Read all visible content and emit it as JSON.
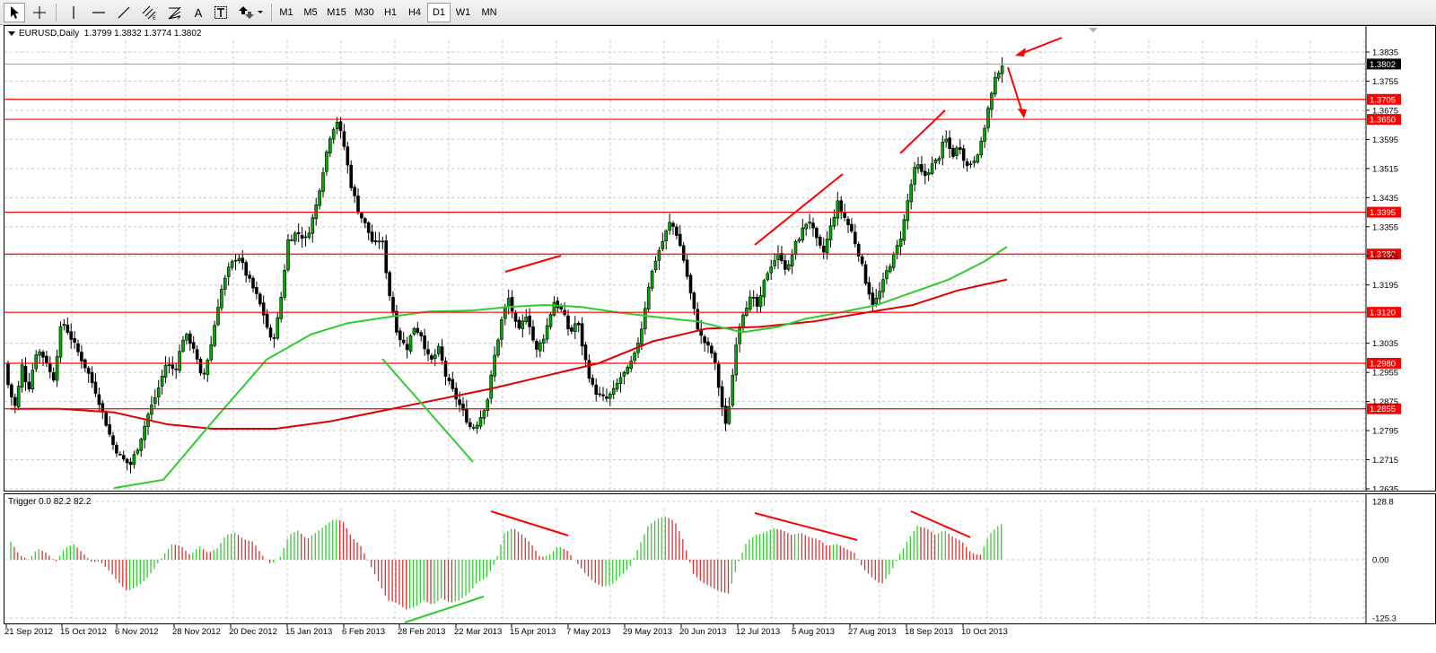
{
  "toolbar": {
    "timeframes": [
      "M1",
      "M5",
      "M15",
      "M30",
      "H1",
      "H4",
      "D1",
      "W1",
      "MN"
    ],
    "active_timeframe": "D1",
    "text_tool_label": "A",
    "icons": [
      "cursor-icon",
      "crosshair-icon",
      "vertical-line-icon",
      "horizontal-line-icon",
      "trendline-icon",
      "fibonacci-channel-icon",
      "fibonacci-fan-icon",
      "text-icon",
      "text-label-icon",
      "arrows-icon"
    ]
  },
  "main_chart": {
    "label": "EURUSD,Daily  1.3799 1.3832 1.3774 1.3802",
    "price_labels": [
      "1.3835",
      "1.3755",
      "1.3675",
      "1.3595",
      "1.3515",
      "1.3435",
      "1.3355",
      "1.3275",
      "1.3195",
      "1.3035",
      "1.2955",
      "1.2875",
      "1.2795",
      "1.2715",
      "1.2635"
    ],
    "current_price": "1.3802",
    "level_labels": [
      "1.3705",
      "1.3650",
      "1.3395",
      "1.3280",
      "1.3120",
      "1.2980",
      "1.2855"
    ],
    "colors": {
      "bull": "#00aa00",
      "bear": "#000000",
      "level": "#ff0000",
      "ma_fast": "#2fcc2f",
      "ma_slow": "#dd0000",
      "annotation": "#ff0000"
    }
  },
  "indicator": {
    "label": "Trigger 0.0 82.2 82.2",
    "scale_labels": [
      "128.8",
      "0.00",
      "-125.3"
    ],
    "colors": {
      "up": "#33cc33",
      "down": "#e03030"
    }
  },
  "date_labels": [
    "21 Sep 2012",
    "15 Oct 2012",
    "6 Nov 2012",
    "28 Nov 2012",
    "20 Dec 2012",
    "15 Jan 2013",
    "6 Feb 2013",
    "28 Feb 2013",
    "22 Mar 2013",
    "15 Apr 2013",
    "7 May 2013",
    "29 May 2013",
    "20 Jun 2013",
    "12 Jul 2013",
    "5 Aug 2013",
    "27 Aug 2013",
    "18 Sep 2013",
    "10 Oct 2013"
  ],
  "chart_data": {
    "type": "candlestick",
    "symbol": "EURUSD",
    "timeframe": "Daily",
    "last_bar": {
      "open": 1.3799,
      "high": 1.3832,
      "low": 1.3774,
      "close": 1.3802
    },
    "ylim": [
      1.2635,
      1.3875
    ],
    "horizontal_levels": [
      1.3705,
      1.365,
      1.3395,
      1.328,
      1.312,
      1.298,
      1.2855
    ],
    "price_path": [
      [
        0,
        1.298
      ],
      [
        8,
        1.29
      ],
      [
        14,
        1.286
      ],
      [
        22,
        1.298
      ],
      [
        28,
        1.29
      ],
      [
        38,
        1.302
      ],
      [
        48,
        1.299
      ],
      [
        56,
        1.293
      ],
      [
        66,
        1.31
      ],
      [
        74,
        1.306
      ],
      [
        84,
        1.301
      ],
      [
        94,
        1.296
      ],
      [
        104,
        1.29
      ],
      [
        112,
        1.284
      ],
      [
        122,
        1.276
      ],
      [
        132,
        1.272
      ],
      [
        142,
        1.27
      ],
      [
        152,
        1.276
      ],
      [
        162,
        1.284
      ],
      [
        172,
        1.29
      ],
      [
        182,
        1.298
      ],
      [
        192,
        1.296
      ],
      [
        202,
        1.306
      ],
      [
        212,
        1.303
      ],
      [
        222,
        1.293
      ],
      [
        232,
        1.303
      ],
      [
        242,
        1.317
      ],
      [
        252,
        1.324
      ],
      [
        262,
        1.328
      ],
      [
        272,
        1.322
      ],
      [
        282,
        1.317
      ],
      [
        290,
        1.312
      ],
      [
        300,
        1.303
      ],
      [
        308,
        1.312
      ],
      [
        318,
        1.332
      ],
      [
        328,
        1.334
      ],
      [
        338,
        1.332
      ],
      [
        348,
        1.34
      ],
      [
        356,
        1.35
      ],
      [
        364,
        1.36
      ],
      [
        372,
        1.365
      ],
      [
        380,
        1.358
      ],
      [
        388,
        1.347
      ],
      [
        396,
        1.34
      ],
      [
        406,
        1.335
      ],
      [
        414,
        1.33
      ],
      [
        422,
        1.333
      ],
      [
        430,
        1.318
      ],
      [
        440,
        1.306
      ],
      [
        450,
        1.302
      ],
      [
        458,
        1.308
      ],
      [
        466,
        1.306
      ],
      [
        476,
        1.298
      ],
      [
        486,
        1.302
      ],
      [
        494,
        1.294
      ],
      [
        504,
        1.289
      ],
      [
        514,
        1.284
      ],
      [
        522,
        1.28
      ],
      [
        530,
        1.282
      ],
      [
        540,
        1.288
      ],
      [
        548,
        1.3
      ],
      [
        556,
        1.31
      ],
      [
        564,
        1.316
      ],
      [
        574,
        1.306
      ],
      [
        584,
        1.312
      ],
      [
        594,
        1.301
      ],
      [
        604,
        1.306
      ],
      [
        614,
        1.315
      ],
      [
        624,
        1.312
      ],
      [
        632,
        1.306
      ],
      [
        640,
        1.31
      ],
      [
        648,
        1.3
      ],
      [
        656,
        1.292
      ],
      [
        664,
        1.289
      ],
      [
        672,
        1.288
      ],
      [
        680,
        1.29
      ],
      [
        688,
        1.294
      ],
      [
        696,
        1.296
      ],
      [
        704,
        1.3
      ],
      [
        712,
        1.308
      ],
      [
        720,
        1.32
      ],
      [
        728,
        1.327
      ],
      [
        736,
        1.332
      ],
      [
        744,
        1.337
      ],
      [
        752,
        1.333
      ],
      [
        760,
        1.325
      ],
      [
        768,
        1.315
      ],
      [
        776,
        1.306
      ],
      [
        784,
        1.303
      ],
      [
        792,
        1.3
      ],
      [
        800,
        1.288
      ],
      [
        806,
        1.28
      ],
      [
        812,
        1.292
      ],
      [
        818,
        1.306
      ],
      [
        826,
        1.313
      ],
      [
        834,
        1.316
      ],
      [
        842,
        1.313
      ],
      [
        850,
        1.322
      ],
      [
        858,
        1.326
      ],
      [
        866,
        1.328
      ],
      [
        874,
        1.323
      ],
      [
        882,
        1.33
      ],
      [
        890,
        1.334
      ],
      [
        898,
        1.338
      ],
      [
        906,
        1.332
      ],
      [
        914,
        1.328
      ],
      [
        922,
        1.335
      ],
      [
        930,
        1.342
      ],
      [
        938,
        1.338
      ],
      [
        946,
        1.334
      ],
      [
        954,
        1.328
      ],
      [
        962,
        1.32
      ],
      [
        970,
        1.314
      ],
      [
        978,
        1.318
      ],
      [
        986,
        1.324
      ],
      [
        994,
        1.328
      ],
      [
        1002,
        1.334
      ],
      [
        1010,
        1.345
      ],
      [
        1018,
        1.353
      ],
      [
        1026,
        1.349
      ],
      [
        1034,
        1.352
      ],
      [
        1042,
        1.354
      ],
      [
        1050,
        1.36
      ],
      [
        1058,
        1.355
      ],
      [
        1066,
        1.358
      ],
      [
        1074,
        1.352
      ],
      [
        1082,
        1.354
      ],
      [
        1090,
        1.358
      ],
      [
        1098,
        1.368
      ],
      [
        1106,
        1.376
      ],
      [
        1112,
        1.3802
      ]
    ],
    "ma_fast": [
      [
        120,
        1.2637
      ],
      [
        175,
        1.266
      ],
      [
        230,
        1.282
      ],
      [
        290,
        1.299
      ],
      [
        340,
        1.306
      ],
      [
        380,
        1.309
      ],
      [
        420,
        1.3105
      ],
      [
        470,
        1.3122
      ],
      [
        520,
        1.3125
      ],
      [
        560,
        1.3135
      ],
      [
        600,
        1.314
      ],
      [
        640,
        1.3135
      ],
      [
        680,
        1.312
      ],
      [
        720,
        1.3108
      ],
      [
        770,
        1.3095
      ],
      [
        820,
        1.3065
      ],
      [
        860,
        1.308
      ],
      [
        890,
        1.3102
      ],
      [
        930,
        1.312
      ],
      [
        970,
        1.314
      ],
      [
        1010,
        1.3175
      ],
      [
        1050,
        1.321
      ],
      [
        1090,
        1.326
      ],
      [
        1115,
        1.33
      ]
    ],
    "ma_slow": [
      [
        5,
        1.2855
      ],
      [
        60,
        1.2855
      ],
      [
        120,
        1.2845
      ],
      [
        180,
        1.2812
      ],
      [
        230,
        1.28
      ],
      [
        300,
        1.28
      ],
      [
        360,
        1.282
      ],
      [
        420,
        1.285
      ],
      [
        480,
        1.288
      ],
      [
        540,
        1.291
      ],
      [
        600,
        1.2945
      ],
      [
        660,
        1.298
      ],
      [
        720,
        1.304
      ],
      [
        780,
        1.3075
      ],
      [
        840,
        1.308
      ],
      [
        900,
        1.3095
      ],
      [
        960,
        1.312
      ],
      [
        1010,
        1.314
      ],
      [
        1060,
        1.318
      ],
      [
        1115,
        1.321
      ]
    ],
    "indicator_series": {
      "name": "Trigger",
      "ylim": [
        -125.3,
        128.8
      ],
      "points": [
        [
          5,
          40
        ],
        [
          15,
          10
        ],
        [
          25,
          0
        ],
        [
          35,
          25
        ],
        [
          45,
          15
        ],
        [
          55,
          -5
        ],
        [
          65,
          25
        ],
        [
          75,
          35
        ],
        [
          85,
          15
        ],
        [
          95,
          -5
        ],
        [
          105,
          -5
        ],
        [
          115,
          -25
        ],
        [
          125,
          -50
        ],
        [
          135,
          -70
        ],
        [
          145,
          -60
        ],
        [
          155,
          -45
        ],
        [
          165,
          -20
        ],
        [
          175,
          10
        ],
        [
          185,
          35
        ],
        [
          195,
          30
        ],
        [
          205,
          10
        ],
        [
          215,
          30
        ],
        [
          225,
          15
        ],
        [
          235,
          25
        ],
        [
          245,
          55
        ],
        [
          255,
          60
        ],
        [
          265,
          45
        ],
        [
          275,
          40
        ],
        [
          285,
          10
        ],
        [
          295,
          -10
        ],
        [
          305,
          5
        ],
        [
          315,
          55
        ],
        [
          325,
          65
        ],
        [
          335,
          45
        ],
        [
          345,
          60
        ],
        [
          355,
          75
        ],
        [
          365,
          90
        ],
        [
          375,
          85
        ],
        [
          385,
          50
        ],
        [
          395,
          30
        ],
        [
          405,
          -10
        ],
        [
          415,
          -50
        ],
        [
          425,
          -90
        ],
        [
          435,
          -95
        ],
        [
          445,
          -110
        ],
        [
          455,
          -105
        ],
        [
          465,
          -90
        ],
        [
          475,
          -100
        ],
        [
          485,
          -85
        ],
        [
          495,
          -95
        ],
        [
          505,
          -90
        ],
        [
          515,
          -75
        ],
        [
          525,
          -50
        ],
        [
          535,
          -40
        ],
        [
          545,
          -5
        ],
        [
          555,
          60
        ],
        [
          565,
          70
        ],
        [
          575,
          55
        ],
        [
          585,
          35
        ],
        [
          595,
          5
        ],
        [
          605,
          10
        ],
        [
          615,
          30
        ],
        [
          625,
          20
        ],
        [
          635,
          -5
        ],
        [
          645,
          -30
        ],
        [
          655,
          -50
        ],
        [
          665,
          -60
        ],
        [
          675,
          -55
        ],
        [
          685,
          -35
        ],
        [
          695,
          -15
        ],
        [
          705,
          30
        ],
        [
          715,
          75
        ],
        [
          725,
          90
        ],
        [
          735,
          95
        ],
        [
          745,
          85
        ],
        [
          755,
          40
        ],
        [
          765,
          -30
        ],
        [
          775,
          -50
        ],
        [
          785,
          -60
        ],
        [
          795,
          -70
        ],
        [
          805,
          -75
        ],
        [
          815,
          -10
        ],
        [
          825,
          40
        ],
        [
          835,
          55
        ],
        [
          845,
          60
        ],
        [
          855,
          70
        ],
        [
          865,
          65
        ],
        [
          875,
          55
        ],
        [
          885,
          60
        ],
        [
          895,
          50
        ],
        [
          905,
          45
        ],
        [
          915,
          30
        ],
        [
          925,
          35
        ],
        [
          935,
          25
        ],
        [
          945,
          15
        ],
        [
          955,
          -20
        ],
        [
          965,
          -40
        ],
        [
          975,
          -55
        ],
        [
          985,
          -30
        ],
        [
          995,
          10
        ],
        [
          1005,
          45
        ],
        [
          1015,
          75
        ],
        [
          1025,
          70
        ],
        [
          1035,
          55
        ],
        [
          1045,
          65
        ],
        [
          1055,
          50
        ],
        [
          1065,
          40
        ],
        [
          1075,
          15
        ],
        [
          1085,
          10
        ],
        [
          1095,
          55
        ],
        [
          1105,
          75
        ],
        [
          1112,
          82.2
        ]
      ]
    }
  }
}
